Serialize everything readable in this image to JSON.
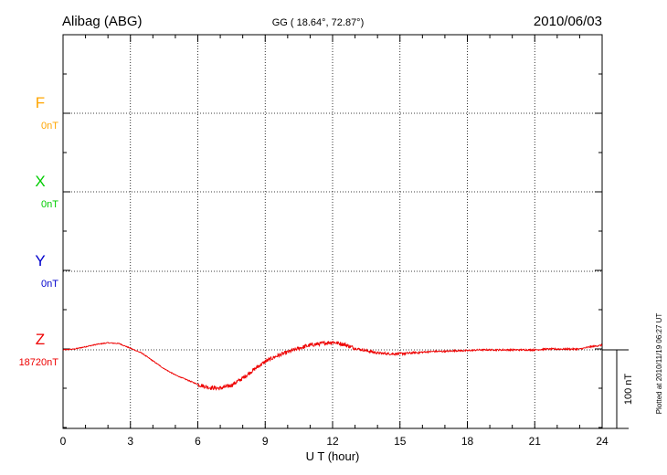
{
  "header": {
    "station": "Alibag (ABG)",
    "coordinates": "GG ( 18.64°,  72.87°)",
    "date": "2010/06/03"
  },
  "footer": {
    "plotted_note": "Plotted at 2010/11/19 06:27 UT"
  },
  "chart_data": {
    "type": "line",
    "title": "Alibag (ABG)",
    "xlabel": "U T (hour)",
    "ylabel": "",
    "xlim": [
      0,
      24
    ],
    "x_ticks": [
      "0",
      "3",
      "6",
      "9",
      "12",
      "15",
      "18",
      "21",
      "24"
    ],
    "grid": true,
    "colors": {
      "F": "#ffa500",
      "X": "#00cc00",
      "Y": "#0000cc",
      "Z": "#ee0000"
    },
    "components": [
      {
        "key": "F",
        "letter": "F",
        "baseline_label": "0nT",
        "color": "#ffa500",
        "has_trace": false
      },
      {
        "key": "X",
        "letter": "X",
        "baseline_label": "0nT",
        "color": "#00cc00",
        "has_trace": false
      },
      {
        "key": "Y",
        "letter": "Y",
        "baseline_label": "0nT",
        "color": "#0000cc",
        "has_trace": false
      },
      {
        "key": "Z",
        "letter": "Z",
        "baseline_label": "18720nT",
        "color": "#ee0000",
        "has_trace": true
      }
    ],
    "scale_bar": {
      "value": 100,
      "label": "100 nT"
    },
    "series": [
      {
        "component": "Z",
        "unit": "nT",
        "x": [
          0,
          0.5,
          1,
          1.5,
          2,
          2.5,
          3,
          3.5,
          4,
          4.5,
          5,
          5.5,
          6,
          6.5,
          7,
          7.5,
          8,
          8.5,
          9,
          9.5,
          10,
          10.5,
          11,
          11.5,
          12,
          12.5,
          13,
          13.5,
          14,
          14.5,
          15,
          15.5,
          16,
          16.5,
          17,
          17.5,
          18,
          18.5,
          19,
          19.5,
          20,
          20.5,
          21,
          21.5,
          22,
          22.5,
          23,
          23.5,
          24
        ],
        "values": [
          18720,
          18721,
          18724,
          18727,
          18729,
          18728,
          18722,
          18716,
          18706,
          18696,
          18688,
          18682,
          18676,
          18672,
          18671,
          18675,
          18684,
          18695,
          18705,
          18712,
          18717,
          18722,
          18726,
          18728,
          18730,
          18727,
          18722,
          18719,
          18716,
          18715,
          18715,
          18716,
          18717,
          18718,
          18718,
          18719,
          18719,
          18720,
          18720,
          18720,
          18720,
          18720,
          18720,
          18721,
          18721,
          18721,
          18721,
          18724,
          18726
        ]
      }
    ]
  }
}
